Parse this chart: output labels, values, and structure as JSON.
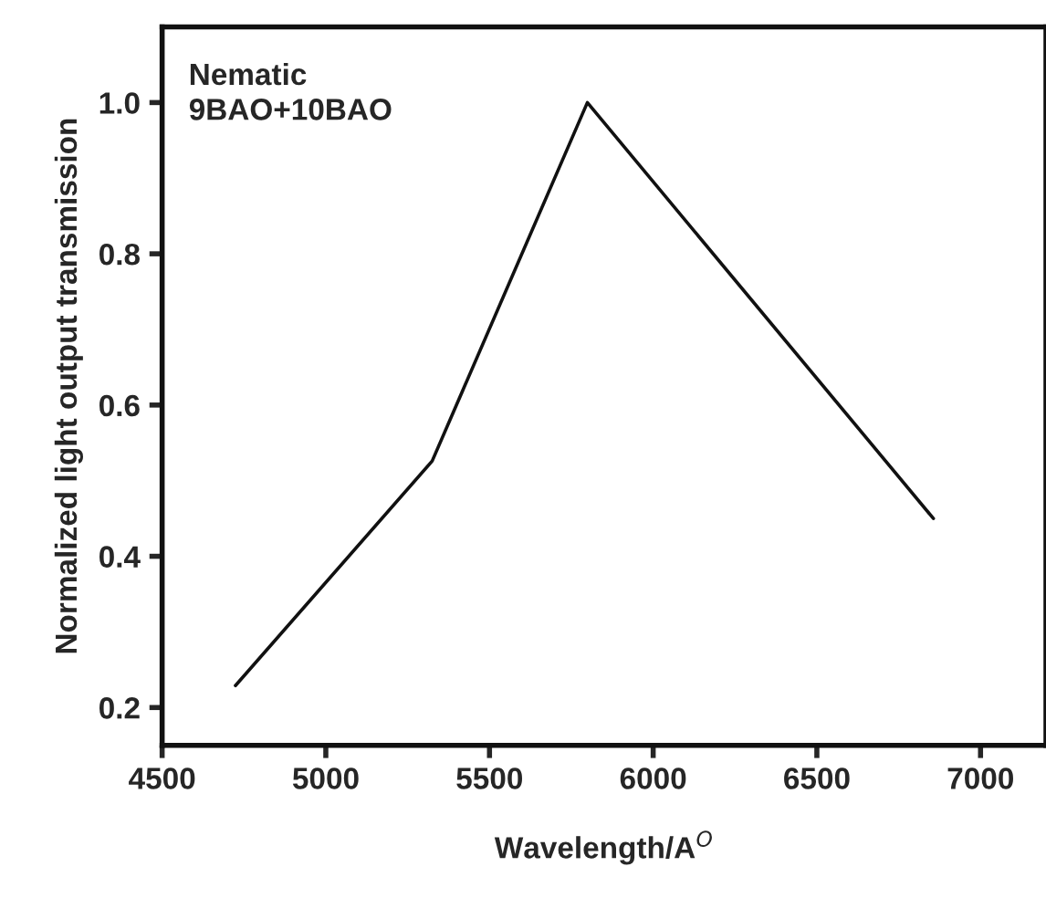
{
  "chart_data": {
    "type": "line",
    "xlabel": "Wavelength/A$^{O}$",
    "ylabel": "Normalized light output transmission",
    "annotations": [
      "Nematic\n9BAO+10BAO"
    ],
    "x": [
      4724,
      5325,
      5799,
      6856
    ],
    "series": [
      {
        "color": "#111111",
        "values": [
          0.229,
          0.526,
          1.0,
          0.45
        ]
      }
    ],
    "xlim": [
      4500,
      7200
    ],
    "ylim": [
      0.15,
      1.1
    ],
    "xticks": [
      4500,
      5000,
      5500,
      6000,
      6500,
      7000
    ],
    "yticks": [
      0.2,
      0.4,
      0.6,
      0.8,
      {
        "value": 1.0,
        "label": "1.0"
      }
    ],
    "grid": false,
    "legend": false,
    "marker": "none",
    "line_style": "solid"
  }
}
